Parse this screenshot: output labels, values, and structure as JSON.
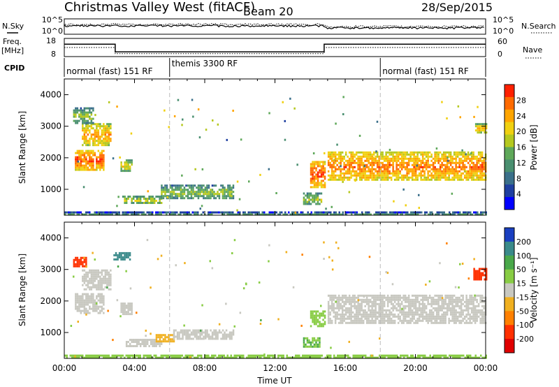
{
  "header": {
    "station": "Christmas Valley West (fitACF)",
    "beam": "Beam 20",
    "date": "28/Sep/2015"
  },
  "summary_panels": {
    "nsky_label": "N.Sky",
    "nsky_ticks": [
      "10^5",
      "10^0"
    ],
    "nsearch_label": "N.Search",
    "nsearch_ticks": [
      "10^5",
      "10^0"
    ],
    "freq_label": [
      "Freq.",
      "[MHz]"
    ],
    "freq_ticks": [
      "18",
      "8"
    ],
    "nave_label": "Nave",
    "nave_ticks": [
      "60",
      "0"
    ],
    "cpid_label": "CPID",
    "cpid_segments": [
      {
        "label": "normal (fast) 151 RF",
        "start_h": 0,
        "end_h": 6
      },
      {
        "label": "themis 3300 RF",
        "start_h": 6,
        "end_h": 18
      },
      {
        "label": "normal (fast) 151 RF",
        "start_h": 18,
        "end_h": 24
      }
    ],
    "freq_steps_mhz": [
      {
        "start_h": 0,
        "end_h": 2.9,
        "value": 14.8
      },
      {
        "start_h": 2.9,
        "end_h": 14.8,
        "value": 10.6
      },
      {
        "start_h": 14.8,
        "end_h": 24,
        "value": 14.8
      }
    ],
    "nave_steps": [
      {
        "start_h": 0,
        "end_h": 2.9,
        "value": 30
      },
      {
        "start_h": 2.9,
        "end_h": 14.8,
        "value": 10
      },
      {
        "start_h": 14.8,
        "end_h": 24,
        "value": 30
      }
    ]
  },
  "chart_data": [
    {
      "type": "heatmap",
      "name": "power",
      "xlabel": "",
      "ylabel": "Slant Range [km]",
      "xlim": [
        0,
        24
      ],
      "ylim": [
        180,
        4500
      ],
      "yticks": [
        1000,
        2000,
        3000,
        4000
      ],
      "colorbar_label": "Power [dB]",
      "colorbar_ticks": [
        "28",
        "24",
        "20",
        "16",
        "12",
        "8",
        "4"
      ],
      "colorbar_min": 0,
      "colorbar_max": 32,
      "colorbar_colors": [
        "#0000ff",
        "#1f3fa0",
        "#3a6f8a",
        "#4a8f70",
        "#5fa85a",
        "#b5c81f",
        "#f0d010",
        "#ffa500",
        "#ff6a00",
        "#ff2000"
      ],
      "echo_regions": [
        {
          "t0": 0.6,
          "t1": 2.2,
          "r0": 1650,
          "r1": 2250,
          "power": 22
        },
        {
          "t0": 1.0,
          "t1": 2.6,
          "r0": 2400,
          "r1": 3100,
          "power": 18
        },
        {
          "t0": 0.5,
          "t1": 1.6,
          "r0": 3100,
          "r1": 3600,
          "power": 10
        },
        {
          "t0": 3.2,
          "t1": 3.8,
          "r0": 1600,
          "r1": 1950,
          "power": 14
        },
        {
          "t0": 3.3,
          "t1": 5.5,
          "r0": 550,
          "r1": 800,
          "power": 12
        },
        {
          "t0": 5.5,
          "t1": 9.6,
          "r0": 700,
          "r1": 1150,
          "power": 10
        },
        {
          "t0": 14.0,
          "t1": 14.8,
          "r0": 1100,
          "r1": 1900,
          "power": 22
        },
        {
          "t0": 15.0,
          "t1": 24.0,
          "r0": 1300,
          "r1": 2200,
          "power": 20
        },
        {
          "t0": 13.6,
          "t1": 14.6,
          "r0": 550,
          "r1": 900,
          "power": 12
        },
        {
          "t0": 23.4,
          "t1": 24.0,
          "r0": 2800,
          "r1": 3100,
          "power": 16
        },
        {
          "t0": 0.0,
          "t1": 24.0,
          "r0": 180,
          "r1": 300,
          "power": 6
        }
      ]
    },
    {
      "type": "heatmap",
      "name": "velocity",
      "xlabel": "Time UT",
      "ylabel": "Slant Range [km]",
      "xlim": [
        0,
        24
      ],
      "ylim": [
        180,
        4500
      ],
      "xticks": [
        "00:00",
        "04:00",
        "08:00",
        "12:00",
        "16:00",
        "20:00",
        "00:00"
      ],
      "yticks": [
        1000,
        2000,
        3000,
        4000
      ],
      "colorbar_label": "Velocity [m s⁻¹]",
      "colorbar_ticks": [
        "200",
        "100",
        "50",
        "15",
        "-15",
        "-50",
        "-100",
        "-200"
      ],
      "colorbar_colors": [
        "#1a3fc0",
        "#3a8a8a",
        "#4aa84a",
        "#88cc44",
        "#c8c8c0",
        "#f0b020",
        "#ff8000",
        "#ff3000",
        "#e00000"
      ],
      "echo_regions": [
        {
          "t0": 0.6,
          "t1": 2.2,
          "r0": 1650,
          "r1": 2250,
          "velocity": 0
        },
        {
          "t0": 1.0,
          "t1": 2.6,
          "r0": 2400,
          "r1": 3000,
          "velocity": 0
        },
        {
          "t0": 0.5,
          "t1": 1.2,
          "r0": 3100,
          "r1": 3400,
          "velocity": -150
        },
        {
          "t0": 2.8,
          "t1": 3.7,
          "r0": 3300,
          "r1": 3550,
          "velocity": 150
        },
        {
          "t0": 3.2,
          "t1": 3.8,
          "r0": 1600,
          "r1": 1950,
          "velocity": 0
        },
        {
          "t0": 3.5,
          "t1": 5.5,
          "r0": 600,
          "r1": 800,
          "velocity": 0
        },
        {
          "t0": 5.2,
          "t1": 6.2,
          "r0": 750,
          "r1": 950,
          "velocity": -40
        },
        {
          "t0": 6.2,
          "t1": 9.6,
          "r0": 800,
          "r1": 1100,
          "velocity": 0
        },
        {
          "t0": 14.0,
          "t1": 14.8,
          "r0": 1200,
          "r1": 1700,
          "velocity": 30
        },
        {
          "t0": 15.0,
          "t1": 24.0,
          "r0": 1300,
          "r1": 2200,
          "velocity": 0
        },
        {
          "t0": 13.6,
          "t1": 14.5,
          "r0": 550,
          "r1": 850,
          "velocity": 50
        },
        {
          "t0": 23.3,
          "t1": 24.0,
          "r0": 2700,
          "r1": 3050,
          "velocity": -180
        },
        {
          "t0": 0.0,
          "t1": 24.0,
          "r0": 180,
          "r1": 300,
          "velocity": 40
        }
      ]
    }
  ]
}
